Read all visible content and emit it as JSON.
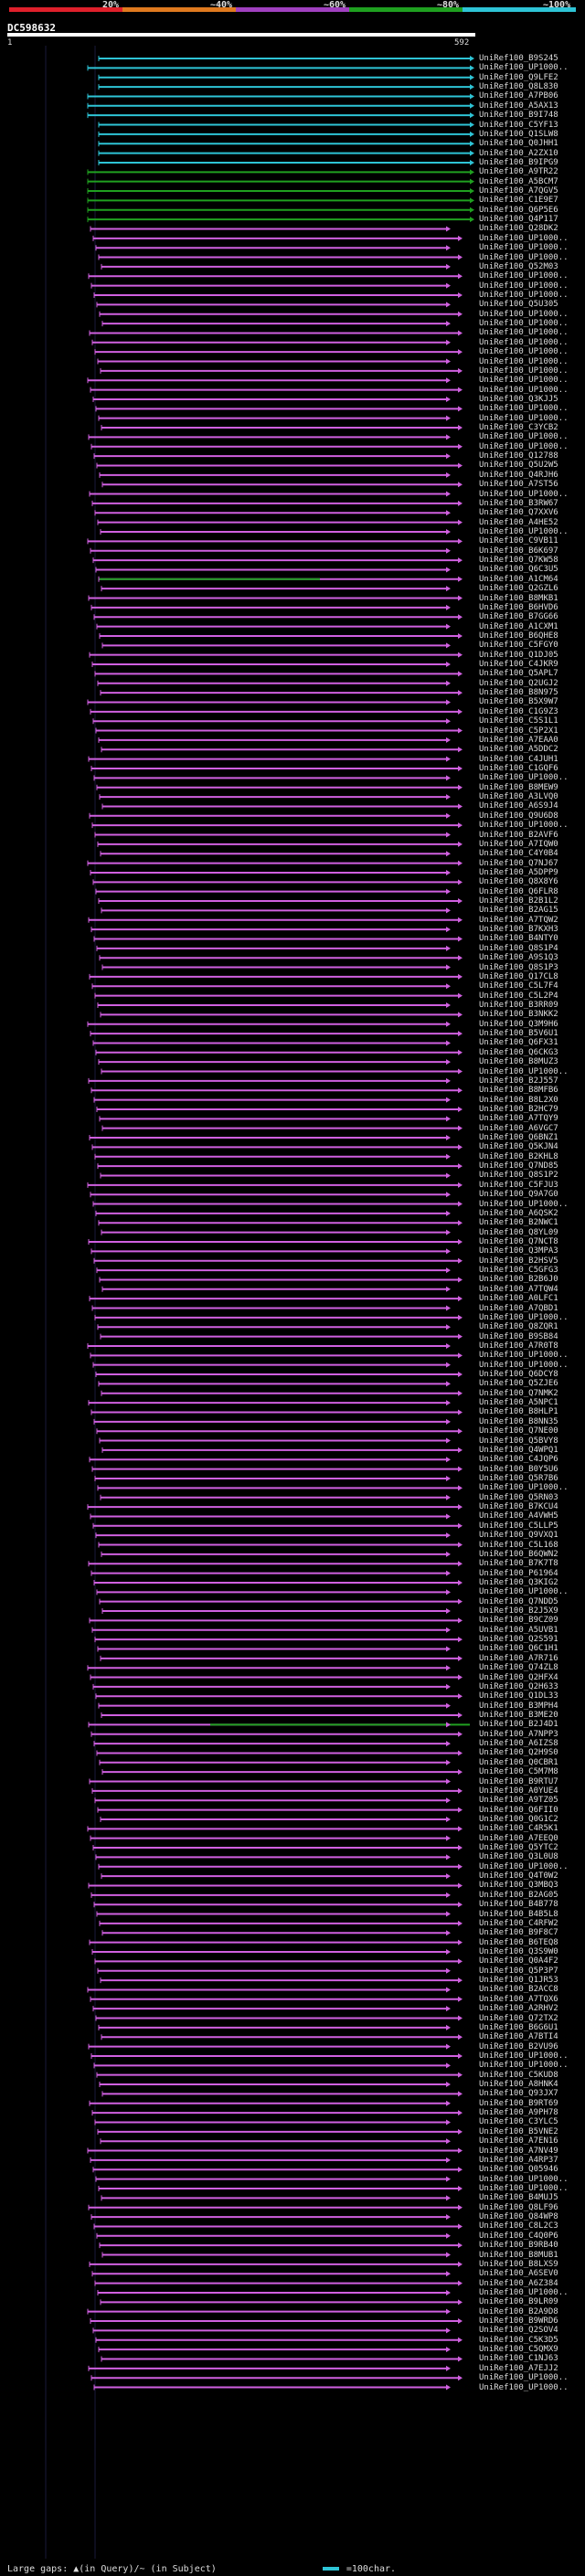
{
  "header": {
    "scale_labels": [
      "20%",
      "~40%",
      "~60%",
      "~80%",
      "~100%"
    ],
    "scale_colors": [
      "#e0202b",
      "#e07a1f",
      "#a040c0",
      "#1fa020",
      "#2ec4d6"
    ]
  },
  "query": {
    "name": "DC598632",
    "start": "1",
    "end": "592"
  },
  "colors": {
    "cyan": "#2ec4d6",
    "green": "#20a020",
    "magenta": "#d060e0"
  },
  "hit_ids": [
    "UniRef100_B9S245",
    "UniRef100_UP1000..",
    "UniRef100_Q9LFE2",
    "UniRef100_Q8L830",
    "UniRef100_A7PB06",
    "UniRef100_A5AX13",
    "UniRef100_B9I748",
    "UniRef100_C5YF13",
    "UniRef100_Q1SLW8",
    "UniRef100_Q0JHH1",
    "UniRef100_A2ZX10",
    "UniRef100_B9IPG9",
    "UniRef100_A9TR22",
    "UniRef100_A5BCM7",
    "UniRef100_A7QGV5",
    "UniRef100_C1E9E7",
    "UniRef100_Q6P5E6",
    "UniRef100_Q4P117",
    "UniRef100_Q28DK2",
    "UniRef100_UP1000..",
    "UniRef100_UP1000..",
    "UniRef100_UP1000..",
    "UniRef100_Q52M03",
    "UniRef100_UP1000..",
    "UniRef100_UP1000..",
    "UniRef100_UP1000..",
    "UniRef100_Q5U305",
    "UniRef100_UP1000..",
    "UniRef100_UP1000..",
    "UniRef100_UP1000..",
    "UniRef100_UP1000..",
    "UniRef100_UP1000..",
    "UniRef100_UP1000..",
    "UniRef100_UP1000..",
    "UniRef100_UP1000..",
    "UniRef100_UP1000..",
    "UniRef100_Q3KJJ5",
    "UniRef100_UP1000..",
    "UniRef100_UP1000..",
    "UniRef100_C3YCB2",
    "UniRef100_UP1000..",
    "UniRef100_UP1000..",
    "UniRef100_Q12788",
    "UniRef100_Q5U2W5",
    "UniRef100_Q4RJH6",
    "UniRef100_A7ST56",
    "UniRef100_UP1000..",
    "UniRef100_B3RW67",
    "UniRef100_Q7XXV6",
    "UniRef100_A4HE52",
    "UniRef100_UP1000..",
    "UniRef100_C9VB11",
    "UniRef100_B6K697",
    "UniRef100_Q7KW58",
    "UniRef100_Q6C3U5",
    "UniRef100_A1CM64",
    "UniRef100_Q2GZL6",
    "UniRef100_B8MKB1",
    "UniRef100_B6HVD6",
    "UniRef100_B7GG66",
    "UniRef100_A1CXM1",
    "UniRef100_B6QHE8",
    "UniRef100_C5FGY0",
    "UniRef100_Q1DJ05",
    "UniRef100_C4JKR9",
    "UniRef100_Q5APL7",
    "UniRef100_Q2UGJ2",
    "UniRef100_B8N975",
    "UniRef100_B5X9W7",
    "UniRef100_C1G9Z3",
    "UniRef100_C5S1L1",
    "UniRef100_C5P2X1",
    "UniRef100_A7EAA0",
    "UniRef100_A5DDC2",
    "UniRef100_C4JUH1",
    "UniRef100_C1GQF6",
    "UniRef100_UP1000..",
    "UniRef100_B8MEW9",
    "UniRef100_A3LVQ0",
    "UniRef100_A6S9J4",
    "UniRef100_Q9U6D8",
    "UniRef100_UP1000..",
    "UniRef100_B2AVF6",
    "UniRef100_A7IQW0",
    "UniRef100_C4Y0B4",
    "UniRef100_Q7NJ67",
    "UniRef100_A5DPP9",
    "UniRef100_Q8X8Y6",
    "UniRef100_Q6FLR8",
    "UniRef100_B2B1L2",
    "UniRef100_B2AG15",
    "UniRef100_A7TQW2",
    "UniRef100_B7KXH3",
    "UniRef100_B4NTY0",
    "UniRef100_Q8S1P4",
    "UniRef100_A9S1Q3",
    "UniRef100_Q8S1P3",
    "UniRef100_Q17CL8",
    "UniRef100_C5L7F4",
    "UniRef100_C5L2P4",
    "UniRef100_B3RR09",
    "UniRef100_B3NKK2",
    "UniRef100_Q3M9H6",
    "UniRef100_B5V6U1",
    "UniRef100_Q6FX31",
    "UniRef100_Q6CKG3",
    "UniRef100_B8MUZ3",
    "UniRef100_UP1000..",
    "UniRef100_B2J557",
    "UniRef100_B8MFB6",
    "UniRef100_B8L2X0",
    "UniRef100_B2HC79",
    "UniRef100_A7TQY9",
    "UniRef100_A6VGC7",
    "UniRef100_Q6BNZ1",
    "UniRef100_Q5KJN4",
    "UniRef100_B2KHL8",
    "UniRef100_Q7ND85",
    "UniRef100_Q8S1P2",
    "UniRef100_C5FJU3",
    "UniRef100_Q9A7G0",
    "UniRef100_UP1000..",
    "UniRef100_A6QSK2",
    "UniRef100_B2NWC1",
    "UniRef100_Q8YL09",
    "UniRef100_Q7NCT8",
    "UniRef100_Q3MPA3",
    "UniRef100_B2HSV5",
    "UniRef100_C5GFG3",
    "UniRef100_B2B6J0",
    "UniRef100_A7TQW4",
    "UniRef100_A0LFC1",
    "UniRef100_A7QBD1",
    "UniRef100_UP1000..",
    "UniRef100_Q8ZQR1",
    "UniRef100_B9SB84",
    "UniRef100_A7R0T8",
    "UniRef100_UP1000..",
    "UniRef100_UP1000..",
    "UniRef100_Q6DCY8",
    "UniRef100_Q5ZJE6",
    "UniRef100_Q7NMK2",
    "UniRef100_A5NPC1",
    "UniRef100_B8HLP1",
    "UniRef100_B8NN35",
    "UniRef100_Q7NE00",
    "UniRef100_Q5BVY8",
    "UniRef100_Q4WPQ1",
    "UniRef100_C4JQP6",
    "UniRef100_B0Y5U6",
    "UniRef100_Q5R7B6",
    "UniRef100_UP1000..",
    "UniRef100_Q5RN03",
    "UniRef100_B7KCU4",
    "UniRef100_A4VWH5",
    "UniRef100_C5LLP5",
    "UniRef100_Q9VXQ1",
    "UniRef100_C5L168",
    "UniRef100_B6QWN2",
    "UniRef100_B7K7T8",
    "UniRef100_P61964",
    "UniRef100_Q3KIG2",
    "UniRef100_UP1000..",
    "UniRef100_Q7NDD5",
    "UniRef100_B2J5X9",
    "UniRef100_B9CZ09",
    "UniRef100_A5UVB1",
    "UniRef100_Q2S591",
    "UniRef100_Q6C1H1",
    "UniRef100_A7R716",
    "UniRef100_Q74ZL8",
    "UniRef100_Q2HFX4",
    "UniRef100_Q2H633",
    "UniRef100_Q1DL33",
    "UniRef100_B3MPH4",
    "UniRef100_B3ME20",
    "UniRef100_B2J4D1",
    "UniRef100_A7NPP3",
    "UniRef100_A6IZS8",
    "UniRef100_Q2H9S0",
    "UniRef100_Q0CBR1",
    "UniRef100_C5M7M8",
    "UniRef100_B9RTU7",
    "UniRef100_A0YUE4",
    "UniRef100_A9TZ05",
    "UniRef100_Q6FII0",
    "UniRef100_Q0G1C2",
    "UniRef100_C4R5K1",
    "UniRef100_A7EEQ0",
    "UniRef100_Q5YTC2",
    "UniRef100_Q3L0U8",
    "UniRef100_UP1000..",
    "UniRef100_Q4T0W2",
    "UniRef100_Q3MBQ3",
    "UniRef100_B2AG05",
    "UniRef100_B4B778",
    "UniRef100_B4B5L8",
    "UniRef100_C4RFW2",
    "UniRef100_B9F8C7",
    "UniRef100_B6TEQ8",
    "UniRef100_Q3S9W0",
    "UniRef100_Q0A4F2",
    "UniRef100_Q5P3P7",
    "UniRef100_Q1JR53",
    "UniRef100_B2ACC8",
    "UniRef100_A7TQX6",
    "UniRef100_A2RHV2",
    "UniRef100_Q72TX2",
    "UniRef100_B6G6U1",
    "UniRef100_A7BTI4",
    "UniRef100_B2VU96",
    "UniRef100_UP1000..",
    "UniRef100_UP1000..",
    "UniRef100_C5KUD8",
    "UniRef100_A8HNK4",
    "UniRef100_Q93JX7",
    "UniRef100_B9RT69",
    "UniRef100_A9PH78",
    "UniRef100_C3YLC5",
    "UniRef100_B5VNE2",
    "UniRef100_A7EN16",
    "UniRef100_A7NV49",
    "UniRef100_A4RP37",
    "UniRef100_Q05946",
    "UniRef100_UP1000..",
    "UniRef100_UP1000..",
    "UniRef100_B4MUJ5",
    "UniRef100_Q8LF96",
    "UniRef100_Q84WP8",
    "UniRef100_C8L2C3",
    "UniRef100_C4Q0P6",
    "UniRef100_B9RB40",
    "UniRef100_B8MUB1",
    "UniRef100_B8LXS9",
    "UniRef100_A6SEV0",
    "UniRef100_A6Z384",
    "UniRef100_UP1000..",
    "UniRef100_B9LR09",
    "UniRef100_B2A9D8",
    "UniRef100_B9WRD6",
    "UniRef100_Q2SOV4",
    "UniRef100_C5K3D5",
    "UniRef100_C5QMX9",
    "UniRef100_C1NJ63",
    "UniRef100_A7EJJ2",
    "UniRef100_UP1000..",
    "UniRef100_UP1000.."
  ],
  "legend": {
    "gaps_text": "Large gaps: ▲(in Query)/~ (in Subject)",
    "scale_text": "=100char."
  }
}
